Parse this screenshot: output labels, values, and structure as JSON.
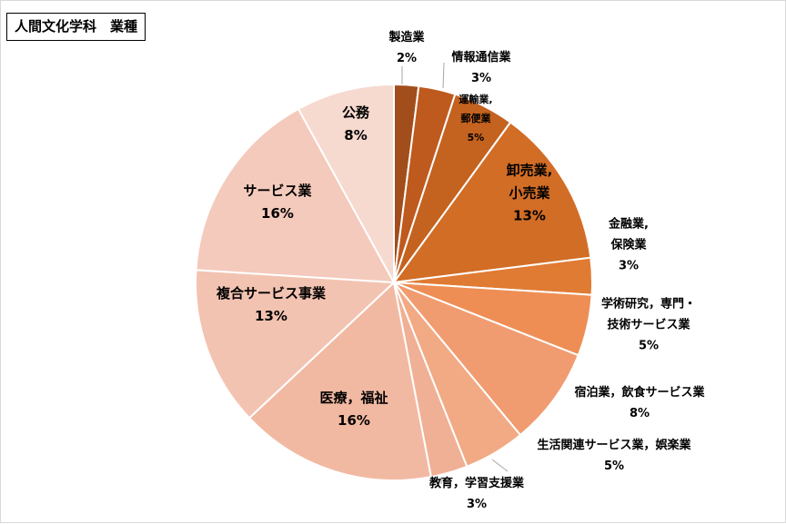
{
  "chart_data": {
    "type": "pie",
    "title": "人間文化学科　業種",
    "slices": [
      {
        "lines": [
          "製造業"
        ],
        "pct": "2%",
        "value": 2,
        "color": "#A24E1C"
      },
      {
        "lines": [
          "情報通信業"
        ],
        "pct": "3%",
        "value": 3,
        "color": "#BE5A1E"
      },
      {
        "lines": [
          "運輸業,",
          "郵便業"
        ],
        "pct": "5%",
        "value": 5,
        "color": "#C4621F"
      },
      {
        "lines": [
          "卸売業,",
          "小売業"
        ],
        "pct": "13%",
        "value": 13,
        "color": "#D26D26"
      },
      {
        "lines": [
          "金融業,",
          "保険業"
        ],
        "pct": "3%",
        "value": 3,
        "color": "#E07B34"
      },
      {
        "lines": [
          "学術研究，専門・",
          "技術サービス業"
        ],
        "pct": "5%",
        "value": 5,
        "color": "#EE8E54"
      },
      {
        "lines": [
          "宿泊業，飲食サービス業"
        ],
        "pct": "8%",
        "value": 8,
        "color": "#F09C70"
      },
      {
        "lines": [
          "生活関連サービス業，娯楽業"
        ],
        "pct": "5%",
        "value": 5,
        "color": "#F2AA84"
      },
      {
        "lines": [
          "教育，学習支援業"
        ],
        "pct": "3%",
        "value": 3,
        "color": "#F0B095"
      },
      {
        "lines": [
          "医療，福祉"
        ],
        "pct": "16%",
        "value": 16,
        "color": "#F2B9A2"
      },
      {
        "lines": [
          "複合サービス事業"
        ],
        "pct": "13%",
        "value": 13,
        "color": "#F3C3B1"
      },
      {
        "lines": [
          "サービス業"
        ],
        "pct": "16%",
        "value": 16,
        "color": "#F4CABC"
      },
      {
        "lines": [
          "公務"
        ],
        "pct": "8%",
        "value": 8,
        "color": "#F6D9CF"
      }
    ]
  }
}
